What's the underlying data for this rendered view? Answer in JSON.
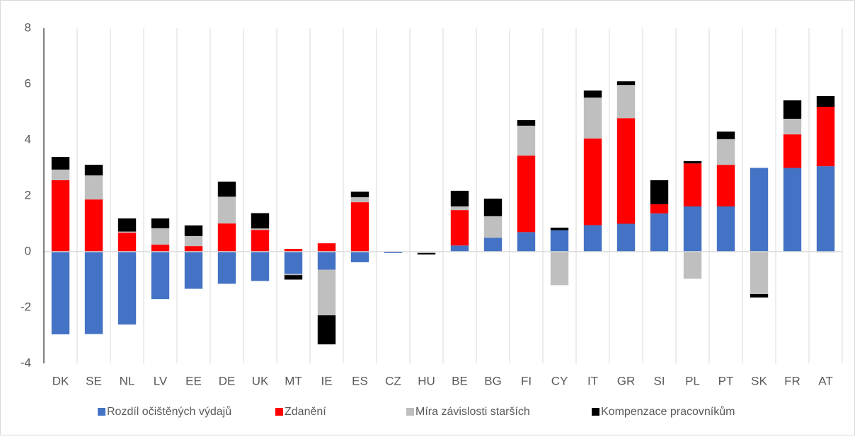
{
  "chart_data": {
    "type": "bar",
    "stacked": true,
    "categories": [
      "DK",
      "SE",
      "NL",
      "LV",
      "EE",
      "DE",
      "UK",
      "MT",
      "IE",
      "ES",
      "CZ",
      "HU",
      "BE",
      "BG",
      "FI",
      "CY",
      "IT",
      "GR",
      "SI",
      "PL",
      "PT",
      "SK",
      "FR",
      "AT"
    ],
    "series": [
      {
        "name": "Rozdíl očištěných výdajů",
        "color": "#4472c4",
        "values": [
          -2.96,
          -2.95,
          -2.61,
          -1.7,
          -1.33,
          -1.15,
          -1.05,
          -0.8,
          -0.65,
          -0.38,
          -0.05,
          -0.02,
          0.22,
          0.5,
          0.7,
          0.77,
          0.95,
          1.0,
          1.37,
          1.62,
          1.62,
          3.0,
          3.0,
          3.06
        ]
      },
      {
        "name": "Zdanění",
        "color": "#ff0000",
        "values": [
          2.56,
          1.87,
          0.68,
          0.25,
          0.2,
          1.01,
          0.78,
          0.1,
          0.3,
          1.77,
          0,
          0,
          1.27,
          0,
          2.74,
          0,
          3.1,
          3.78,
          0.33,
          1.54,
          1.49,
          0,
          1.2,
          2.13
        ]
      },
      {
        "name": "Míra závislosti starších",
        "color": "#bfbfbf",
        "values": [
          0.38,
          0.86,
          0.04,
          0.59,
          0.36,
          0.96,
          0.05,
          -0.04,
          -1.63,
          0.18,
          0,
          -0.03,
          0.13,
          0.77,
          1.07,
          -1.2,
          1.47,
          1.19,
          0,
          -0.97,
          0.92,
          -1.52,
          0.56,
          -0.03
        ]
      },
      {
        "name": "Kompenzace pracovníkům",
        "color": "#000000",
        "values": [
          0.45,
          0.38,
          0.47,
          0.35,
          0.38,
          0.54,
          0.55,
          -0.16,
          -1.04,
          0.2,
          0,
          -0.05,
          0.56,
          0.63,
          0.2,
          0.09,
          0.25,
          0.13,
          0.86,
          0.08,
          0.27,
          -0.12,
          0.66,
          0.38
        ]
      }
    ],
    "ylim": [
      -4,
      8
    ],
    "yticks": [
      -4,
      -2,
      0,
      2,
      4,
      6,
      8
    ],
    "grid": true,
    "legend": "bottom"
  }
}
